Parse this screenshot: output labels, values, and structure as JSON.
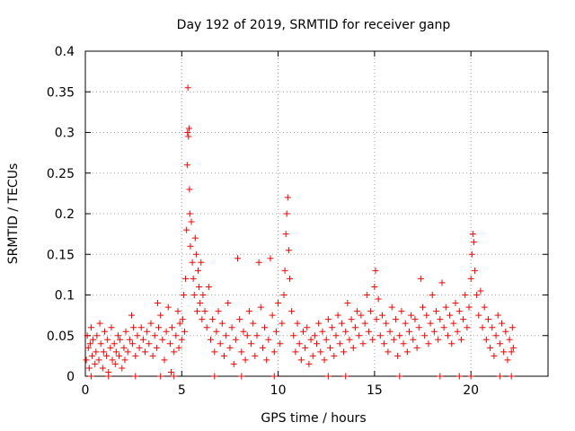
{
  "chart_data": {
    "type": "scatter",
    "title": "Day 192 of 2019, SRMTID for receiver ganp",
    "xlabel": "GPS time / hours",
    "ylabel": "SRMTID / TECUs",
    "xlim": [
      0,
      24
    ],
    "ylim": [
      0,
      0.4
    ],
    "grid": true,
    "marker": "+",
    "series_color": "#ff0000",
    "x_ticks": [
      0,
      5,
      10,
      15,
      20
    ],
    "x_tick_labels": [
      "0",
      "5",
      "10",
      "15",
      "20"
    ],
    "y_ticks": [
      0,
      0.05,
      0.1,
      0.15,
      0.2,
      0.25,
      0.3,
      0.35,
      0.4
    ],
    "y_tick_labels": [
      "0",
      "0.05",
      "0.1",
      "0.15",
      "0.2",
      "0.25",
      "0.3",
      "0.35",
      "0.4"
    ],
    "series": [
      {
        "name": "SRMTID",
        "points": [
          [
            0.05,
            0.02
          ],
          [
            0.1,
            0.05
          ],
          [
            0.15,
            0.035
          ],
          [
            0.2,
            0.01
          ],
          [
            0.25,
            0.04
          ],
          [
            0.3,
            0.06
          ],
          [
            0.35,
            0.025
          ],
          [
            0.4,
            0.045
          ],
          [
            0.5,
            0.015
          ],
          [
            0.55,
            0.03
          ],
          [
            0.6,
            0.05
          ],
          [
            0.7,
            0.02
          ],
          [
            0.75,
            0.065
          ],
          [
            0.8,
            0.04
          ],
          [
            0.9,
            0.01
          ],
          [
            0.95,
            0.03
          ],
          [
            1.0,
            0.055
          ],
          [
            1.1,
            0.025
          ],
          [
            1.15,
            0.045
          ],
          [
            1.2,
            0.005
          ],
          [
            1.3,
            0.035
          ],
          [
            1.35,
            0.06
          ],
          [
            1.4,
            0.02
          ],
          [
            1.5,
            0.04
          ],
          [
            1.55,
            0.015
          ],
          [
            1.6,
            0.03
          ],
          [
            1.7,
            0.05
          ],
          [
            1.75,
            0.025
          ],
          [
            1.8,
            0.045
          ],
          [
            1.9,
            0.01
          ],
          [
            2.0,
            0.035
          ],
          [
            2.05,
            0.02
          ],
          [
            2.1,
            0.055
          ],
          [
            2.2,
            0.03
          ],
          [
            2.3,
            0.045
          ],
          [
            2.4,
            0.075
          ],
          [
            2.45,
            0.04
          ],
          [
            2.5,
            0.06
          ],
          [
            2.6,
            0.025
          ],
          [
            2.7,
            0.05
          ],
          [
            2.8,
            0.035
          ],
          [
            2.9,
            0.06
          ],
          [
            3.0,
            0.045
          ],
          [
            3.1,
            0.03
          ],
          [
            3.2,
            0.055
          ],
          [
            3.3,
            0.04
          ],
          [
            3.4,
            0.065
          ],
          [
            3.5,
            0.025
          ],
          [
            3.6,
            0.05
          ],
          [
            3.7,
            0.035
          ],
          [
            3.75,
            0.09
          ],
          [
            3.8,
            0.06
          ],
          [
            3.9,
            0.075
          ],
          [
            4.0,
            0.045
          ],
          [
            4.1,
            0.02
          ],
          [
            4.2,
            0.055
          ],
          [
            4.3,
            0.085
          ],
          [
            4.4,
            0.04
          ],
          [
            4.45,
            0.005
          ],
          [
            4.5,
            0.06
          ],
          [
            4.6,
            0.03
          ],
          [
            4.7,
            0.05
          ],
          [
            4.8,
            0.08
          ],
          [
            4.85,
            0.035
          ],
          [
            4.9,
            0.065
          ],
          [
            5.0,
            0.045
          ],
          [
            5.05,
            0.07
          ],
          [
            5.1,
            0.1
          ],
          [
            5.15,
            0.055
          ],
          [
            5.2,
            0.12
          ],
          [
            5.25,
            0.18
          ],
          [
            5.28,
            0.26
          ],
          [
            5.3,
            0.3
          ],
          [
            5.32,
            0.355
          ],
          [
            5.35,
            0.295
          ],
          [
            5.38,
            0.305
          ],
          [
            5.4,
            0.23
          ],
          [
            5.42,
            0.2
          ],
          [
            5.45,
            0.16
          ],
          [
            5.5,
            0.19
          ],
          [
            5.55,
            0.14
          ],
          [
            5.6,
            0.12
          ],
          [
            5.65,
            0.1
          ],
          [
            5.7,
            0.17
          ],
          [
            5.75,
            0.15
          ],
          [
            5.8,
            0.08
          ],
          [
            5.85,
            0.13
          ],
          [
            5.9,
            0.11
          ],
          [
            5.95,
            0.09
          ],
          [
            6.0,
            0.14
          ],
          [
            6.05,
            0.07
          ],
          [
            6.1,
            0.1
          ],
          [
            6.2,
            0.08
          ],
          [
            6.3,
            0.06
          ],
          [
            6.4,
            0.11
          ],
          [
            6.5,
            0.045
          ],
          [
            6.6,
            0.07
          ],
          [
            6.7,
            0.03
          ],
          [
            6.8,
            0.055
          ],
          [
            6.9,
            0.08
          ],
          [
            7.0,
            0.04
          ],
          [
            7.1,
            0.065
          ],
          [
            7.2,
            0.025
          ],
          [
            7.3,
            0.05
          ],
          [
            7.4,
            0.09
          ],
          [
            7.5,
            0.035
          ],
          [
            7.6,
            0.06
          ],
          [
            7.7,
            0.015
          ],
          [
            7.8,
            0.045
          ],
          [
            7.9,
            0.145
          ],
          [
            8.0,
            0.07
          ],
          [
            8.1,
            0.03
          ],
          [
            8.2,
            0.055
          ],
          [
            8.3,
            0.02
          ],
          [
            8.4,
            0.05
          ],
          [
            8.5,
            0.08
          ],
          [
            8.6,
            0.04
          ],
          [
            8.7,
            0.065
          ],
          [
            8.8,
            0.025
          ],
          [
            8.9,
            0.05
          ],
          [
            9.0,
            0.14
          ],
          [
            9.1,
            0.085
          ],
          [
            9.2,
            0.035
          ],
          [
            9.3,
            0.06
          ],
          [
            9.4,
            0.02
          ],
          [
            9.5,
            0.045
          ],
          [
            9.6,
            0.145
          ],
          [
            9.7,
            0.075
          ],
          [
            9.8,
            0.03
          ],
          [
            9.9,
            0.055
          ],
          [
            10.0,
            0.09
          ],
          [
            10.1,
            0.04
          ],
          [
            10.2,
            0.065
          ],
          [
            10.3,
            0.1
          ],
          [
            10.35,
            0.13
          ],
          [
            10.4,
            0.175
          ],
          [
            10.45,
            0.2
          ],
          [
            10.5,
            0.22
          ],
          [
            10.55,
            0.155
          ],
          [
            10.6,
            0.12
          ],
          [
            10.7,
            0.08
          ],
          [
            10.8,
            0.05
          ],
          [
            10.9,
            0.03
          ],
          [
            11.0,
            0.065
          ],
          [
            11.1,
            0.04
          ],
          [
            11.2,
            0.02
          ],
          [
            11.3,
            0.055
          ],
          [
            11.4,
            0.035
          ],
          [
            11.5,
            0.06
          ],
          [
            11.6,
            0.015
          ],
          [
            11.7,
            0.045
          ],
          [
            11.8,
            0.025
          ],
          [
            11.9,
            0.05
          ],
          [
            12.0,
            0.04
          ],
          [
            12.1,
            0.065
          ],
          [
            12.2,
            0.03
          ],
          [
            12.3,
            0.055
          ],
          [
            12.4,
            0.02
          ],
          [
            12.5,
            0.045
          ],
          [
            12.6,
            0.07
          ],
          [
            12.7,
            0.035
          ],
          [
            12.8,
            0.06
          ],
          [
            12.9,
            0.025
          ],
          [
            13.0,
            0.05
          ],
          [
            13.1,
            0.075
          ],
          [
            13.2,
            0.04
          ],
          [
            13.3,
            0.065
          ],
          [
            13.4,
            0.03
          ],
          [
            13.5,
            0.055
          ],
          [
            13.6,
            0.09
          ],
          [
            13.7,
            0.045
          ],
          [
            13.8,
            0.07
          ],
          [
            13.9,
            0.035
          ],
          [
            14.0,
            0.06
          ],
          [
            14.1,
            0.08
          ],
          [
            14.2,
            0.05
          ],
          [
            14.3,
            0.075
          ],
          [
            14.4,
            0.04
          ],
          [
            14.5,
            0.065
          ],
          [
            14.6,
            0.1
          ],
          [
            14.7,
            0.055
          ],
          [
            14.8,
            0.08
          ],
          [
            14.9,
            0.045
          ],
          [
            15.0,
            0.11
          ],
          [
            15.05,
            0.13
          ],
          [
            15.1,
            0.07
          ],
          [
            15.2,
            0.095
          ],
          [
            15.3,
            0.05
          ],
          [
            15.4,
            0.075
          ],
          [
            15.5,
            0.04
          ],
          [
            15.6,
            0.065
          ],
          [
            15.7,
            0.03
          ],
          [
            15.8,
            0.055
          ],
          [
            15.9,
            0.085
          ],
          [
            16.0,
            0.045
          ],
          [
            16.1,
            0.07
          ],
          [
            16.2,
            0.025
          ],
          [
            16.3,
            0.05
          ],
          [
            16.4,
            0.08
          ],
          [
            16.5,
            0.04
          ],
          [
            16.6,
            0.065
          ],
          [
            16.7,
            0.03
          ],
          [
            16.8,
            0.055
          ],
          [
            16.9,
            0.075
          ],
          [
            17.0,
            0.045
          ],
          [
            17.1,
            0.07
          ],
          [
            17.2,
            0.035
          ],
          [
            17.3,
            0.06
          ],
          [
            17.4,
            0.12
          ],
          [
            17.5,
            0.085
          ],
          [
            17.6,
            0.05
          ],
          [
            17.7,
            0.075
          ],
          [
            17.8,
            0.04
          ],
          [
            17.9,
            0.065
          ],
          [
            18.0,
            0.1
          ],
          [
            18.1,
            0.055
          ],
          [
            18.2,
            0.08
          ],
          [
            18.3,
            0.045
          ],
          [
            18.4,
            0.07
          ],
          [
            18.5,
            0.115
          ],
          [
            18.6,
            0.06
          ],
          [
            18.7,
            0.085
          ],
          [
            18.8,
            0.05
          ],
          [
            18.9,
            0.075
          ],
          [
            19.0,
            0.04
          ],
          [
            19.1,
            0.065
          ],
          [
            19.2,
            0.09
          ],
          [
            19.3,
            0.055
          ],
          [
            19.4,
            0.08
          ],
          [
            19.5,
            0.045
          ],
          [
            19.6,
            0.07
          ],
          [
            19.7,
            0.1
          ],
          [
            19.8,
            0.06
          ],
          [
            19.9,
            0.085
          ],
          [
            20.0,
            0.12
          ],
          [
            20.05,
            0.15
          ],
          [
            20.1,
            0.175
          ],
          [
            20.15,
            0.165
          ],
          [
            20.2,
            0.13
          ],
          [
            20.3,
            0.1
          ],
          [
            20.4,
            0.075
          ],
          [
            20.5,
            0.105
          ],
          [
            20.6,
            0.06
          ],
          [
            20.7,
            0.085
          ],
          [
            20.8,
            0.045
          ],
          [
            20.9,
            0.07
          ],
          [
            21.0,
            0.035
          ],
          [
            21.1,
            0.06
          ],
          [
            21.2,
            0.025
          ],
          [
            21.3,
            0.05
          ],
          [
            21.4,
            0.075
          ],
          [
            21.5,
            0.04
          ],
          [
            21.6,
            0.065
          ],
          [
            21.7,
            0.03
          ],
          [
            21.8,
            0.055
          ],
          [
            21.9,
            0.02
          ],
          [
            22.0,
            0.045
          ],
          [
            22.1,
            0.03
          ],
          [
            22.15,
            0.06
          ],
          [
            22.2,
            0.035
          ],
          [
            0.3,
            0.0
          ],
          [
            1.2,
            0.0
          ],
          [
            2.6,
            0.0
          ],
          [
            3.9,
            0.0
          ],
          [
            4.6,
            0.0
          ],
          [
            6.7,
            0.0
          ],
          [
            8.1,
            0.0
          ],
          [
            9.8,
            0.0
          ],
          [
            12.6,
            0.0
          ],
          [
            13.5,
            0.0
          ],
          [
            16.3,
            0.0
          ],
          [
            18.4,
            0.0
          ],
          [
            19.4,
            0.0
          ],
          [
            20.0,
            0.0
          ],
          [
            21.5,
            0.0
          ],
          [
            22.1,
            0.0
          ]
        ]
      }
    ]
  }
}
